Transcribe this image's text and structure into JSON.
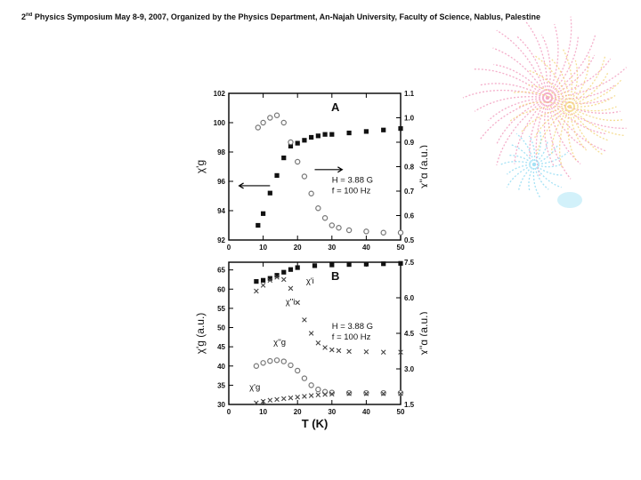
{
  "header": {
    "text_before": "2",
    "text_sup": "nd",
    "text_after": " Physics Symposium May 8-9, 2007, Organized by the Physics Department, An-Najah University, Faculty of Science, Nablus, Palestine"
  },
  "colors": {
    "filled": "#111111",
    "open": "#777777",
    "firework_pink": "#f08cb4",
    "firework_blue": "#7fd6f2",
    "firework_yellow": "#f2d16a"
  },
  "chart_data": [
    {
      "type": "scatter",
      "panel_label": "A",
      "xlim": [
        0,
        50
      ],
      "x_ticks": [
        "0",
        "10",
        "20",
        "30",
        "40",
        "50"
      ],
      "ylim_left": [
        92,
        102
      ],
      "y_ticks_left": [
        "92",
        "94",
        "96",
        "98",
        "100",
        "102"
      ],
      "ylabel_left": "χ'g",
      "ylim_right": [
        0.5,
        1.1
      ],
      "y_ticks_right": [
        "0.5",
        "0.6",
        "0.7",
        "0.8",
        "0.9",
        "1.0",
        "1.1"
      ],
      "ylabel_right": "χ''g (a.u.)",
      "annotations": [
        "H = 3.88 G",
        "f = 100  Hz"
      ],
      "series": [
        {
          "axis": "left",
          "marker": "filled",
          "x": [
            8.5,
            10,
            12,
            14,
            16,
            18,
            20,
            22,
            24,
            26,
            28,
            30,
            35,
            40,
            45,
            50
          ],
          "y": [
            93.0,
            93.8,
            95.2,
            96.4,
            97.6,
            98.4,
            98.6,
            98.8,
            99.0,
            99.1,
            99.2,
            99.2,
            99.3,
            99.4,
            99.5,
            99.6
          ]
        },
        {
          "axis": "right",
          "marker": "open",
          "x": [
            8.5,
            10,
            12,
            14,
            16,
            18,
            20,
            22,
            24,
            26,
            28,
            30,
            32,
            35,
            40,
            45,
            50
          ],
          "y": [
            0.96,
            0.98,
            1.0,
            1.01,
            0.98,
            0.9,
            0.82,
            0.76,
            0.69,
            0.63,
            0.59,
            0.56,
            0.55,
            0.54,
            0.535,
            0.53,
            0.53
          ]
        }
      ]
    },
    {
      "type": "scatter",
      "panel_label": "B",
      "xlim": [
        0,
        50
      ],
      "x_ticks": [
        "0",
        "10",
        "20",
        "30",
        "40",
        "50"
      ],
      "xlabel": "T (K)",
      "ylim_left": [
        30,
        67
      ],
      "y_ticks_left": [
        "30",
        "35",
        "40",
        "45",
        "50",
        "55",
        "60",
        "65"
      ],
      "ylabel_left": "χ'g (a.u.)",
      "ylim_right": [
        1.5,
        7.5
      ],
      "y_ticks_right": [
        "1.5",
        "3.0",
        "4.5",
        "6.0",
        "7.5"
      ],
      "ylabel_right": "χ''g (a.u.)",
      "annotations": [
        "H = 3.88 G",
        "f = 100 Hz"
      ],
      "series": [
        {
          "name": "χ'i",
          "axis": "left",
          "marker": "filled",
          "x": [
            8,
            10,
            12,
            14,
            16,
            18,
            20,
            25,
            30,
            35,
            40,
            45,
            50
          ],
          "y": [
            62,
            62.3,
            62.8,
            63.6,
            64.4,
            65.1,
            65.6,
            66.1,
            66.3,
            66.4,
            66.5,
            66.6,
            66.7
          ]
        },
        {
          "name": "χ''i",
          "axis": "left",
          "marker": "cross",
          "x": [
            8,
            10,
            12,
            14,
            16,
            18,
            20,
            22,
            24,
            26,
            28,
            30,
            32,
            35,
            40,
            45,
            50
          ],
          "y": [
            59.5,
            61,
            62.3,
            63.1,
            62.5,
            60.2,
            56.5,
            52,
            48.5,
            46,
            44.8,
            44.2,
            44,
            43.8,
            43.7,
            43.6,
            43.6
          ]
        },
        {
          "name": "χ''g",
          "axis": "left",
          "marker": "open",
          "x": [
            8,
            10,
            12,
            14,
            16,
            18,
            20,
            22,
            24,
            26,
            28,
            30,
            35,
            40,
            45,
            50
          ],
          "y": [
            40,
            40.8,
            41.3,
            41.5,
            41.2,
            40.2,
            38.8,
            36.8,
            35,
            33.9,
            33.3,
            33.1,
            33,
            33,
            33,
            33
          ]
        },
        {
          "name": "χ'g",
          "axis": "left",
          "marker": "cross",
          "x": [
            8,
            10,
            12,
            14,
            16,
            18,
            20,
            22,
            24,
            26,
            28,
            30,
            35,
            40,
            45,
            50
          ],
          "y": [
            30.4,
            30.8,
            31.1,
            31.3,
            31.5,
            31.7,
            31.9,
            32.1,
            32.3,
            32.5,
            32.6,
            32.7,
            32.8,
            32.8,
            32.8,
            32.8
          ]
        }
      ]
    }
  ]
}
